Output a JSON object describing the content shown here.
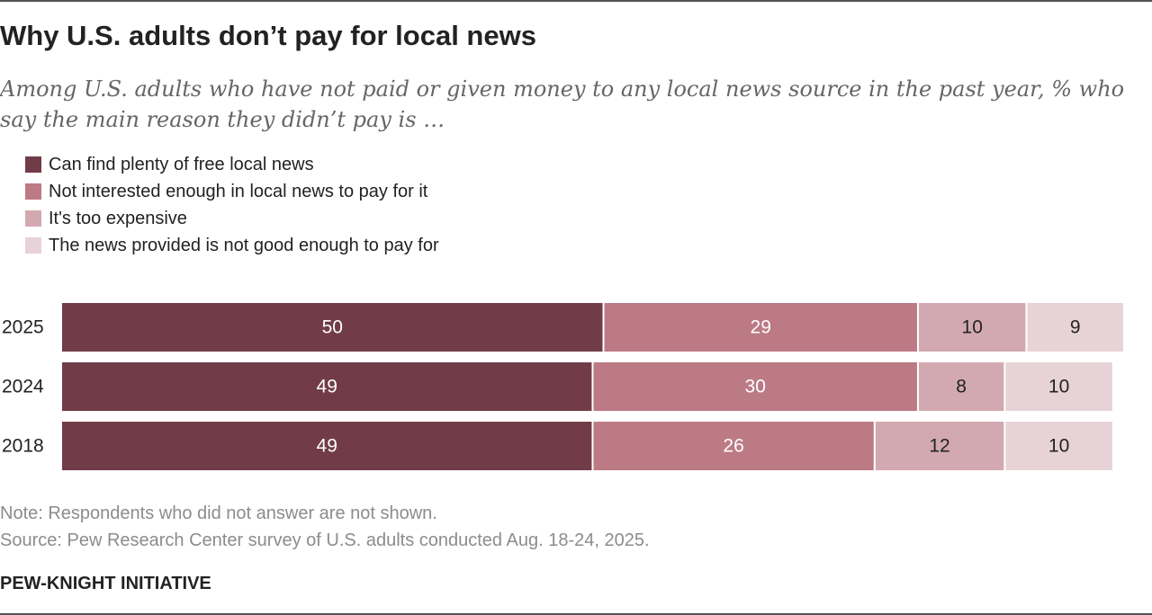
{
  "title": "Why U.S. adults don’t pay for local news",
  "subtitle": "Among U.S. adults who have not paid or given money to any local news source in the past year, % who say the main reason they didn’t pay is …",
  "chart_data": {
    "type": "bar",
    "orientation": "horizontal",
    "stacked": true,
    "categories": [
      "2025",
      "2024",
      "2018"
    ],
    "series": [
      {
        "name": "Can find plenty of free local news",
        "color": "#713C47",
        "label_color": "#ffffff",
        "values": [
          50,
          49,
          49
        ]
      },
      {
        "name": "Not interested enough in local news to pay for it",
        "color": "#BC7A85",
        "label_color": "#ffffff",
        "values": [
          29,
          30,
          26
        ]
      },
      {
        "name": "It's too expensive",
        "color": "#D3A9B1",
        "label_color": "#222222",
        "values": [
          10,
          8,
          12
        ]
      },
      {
        "name": "The news provided is not good enough to pay for",
        "color": "#E7D3D7",
        "label_color": "#222222",
        "values": [
          9,
          10,
          10
        ]
      }
    ],
    "xlim": [
      0,
      100
    ],
    "xlabel": "",
    "ylabel": "",
    "legend": "top-left",
    "grid": false
  },
  "footer": {
    "note": "Note: Respondents who did not answer are not shown.",
    "source": "Source: Pew Research Center survey of U.S. adults conducted Aug. 18-24, 2025.",
    "brand": "PEW-KNIGHT INITIATIVE"
  }
}
